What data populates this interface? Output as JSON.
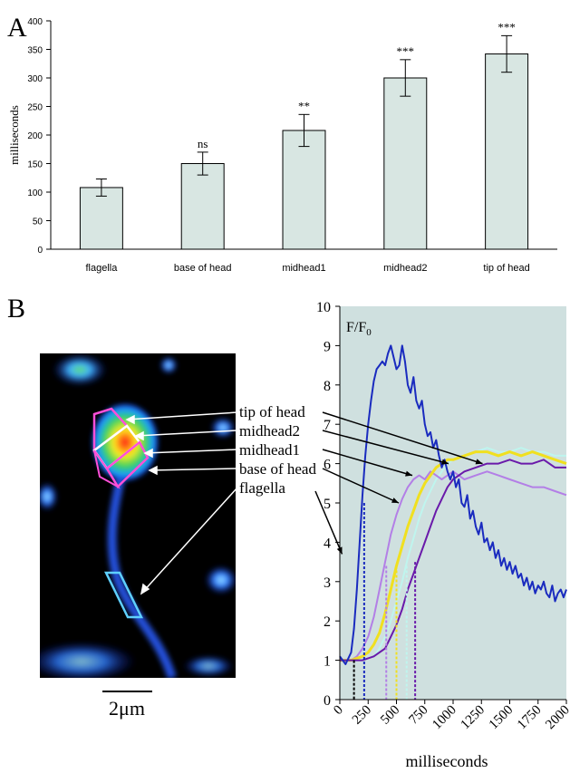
{
  "panel_a_label": "A",
  "panel_b_label": "B",
  "scale_bar_label": "2μm",
  "colors": {
    "bar_fill": "#d8e6e2",
    "plot_bg": "#cfe0df",
    "flagella": "#1a2bbf",
    "base_of_head": "#b37fe6",
    "midhead1": "#f0e020",
    "midhead2": "#bff5ee",
    "tip_of_head": "#6a1aaa"
  },
  "micrograph_labels": [
    "tip of head",
    "midhead2",
    "midhead1",
    "base of head",
    "flagella"
  ],
  "chart_data": [
    {
      "type": "bar",
      "categories": [
        "flagella",
        "base of head",
        "midhead1",
        "midhead2",
        "tip of head"
      ],
      "values": [
        108,
        150,
        208,
        300,
        342
      ],
      "errors": [
        15,
        20,
        28,
        32,
        32
      ],
      "significance": [
        "",
        "ns",
        "**",
        "***",
        "***"
      ],
      "ylabel": "milliseconds",
      "ylim": [
        0,
        400
      ],
      "yticks": [
        0,
        50,
        100,
        150,
        200,
        250,
        300,
        350,
        400
      ],
      "grid": false
    },
    {
      "type": "line",
      "ylabel_main": "F/F",
      "ylabel_sub": "0",
      "xlabel": "milliseconds",
      "xlim": [
        0,
        2000
      ],
      "ylim": [
        0,
        10
      ],
      "xticks": [
        0,
        250,
        500,
        750,
        1000,
        1250,
        1500,
        1750,
        2000
      ],
      "yticks": [
        0,
        1,
        2,
        3,
        4,
        5,
        6,
        7,
        8,
        9,
        10
      ],
      "series": [
        {
          "key": "flagella",
          "x": [
            0,
            50,
            100,
            125,
            150,
            175,
            200,
            225,
            250,
            275,
            300,
            325,
            350,
            375,
            400,
            425,
            450,
            475,
            500,
            525,
            550,
            575,
            600,
            625,
            650,
            675,
            700,
            725,
            750,
            775,
            800,
            825,
            850,
            875,
            900,
            925,
            950,
            975,
            1000,
            1025,
            1050,
            1075,
            1100,
            1125,
            1150,
            1175,
            1200,
            1225,
            1250,
            1275,
            1300,
            1325,
            1350,
            1375,
            1400,
            1425,
            1450,
            1475,
            1500,
            1525,
            1550,
            1575,
            1600,
            1625,
            1650,
            1675,
            1700,
            1725,
            1750,
            1775,
            1800,
            1825,
            1850,
            1875,
            1900,
            1925,
            1950,
            1975,
            2000
          ],
          "y": [
            1.1,
            0.9,
            1.2,
            1.8,
            2.8,
            4.0,
            5.2,
            6.2,
            7.0,
            7.6,
            8.1,
            8.4,
            8.5,
            8.6,
            8.5,
            8.8,
            9.0,
            8.7,
            8.4,
            8.5,
            9.0,
            8.6,
            8.0,
            7.8,
            8.2,
            7.6,
            7.4,
            7.6,
            7.0,
            6.7,
            6.8,
            6.4,
            6.6,
            6.2,
            5.9,
            6.1,
            5.8,
            5.6,
            5.8,
            5.4,
            5.6,
            5.0,
            4.9,
            5.2,
            4.6,
            4.8,
            4.4,
            4.2,
            4.5,
            4.0,
            4.1,
            3.8,
            4.0,
            3.6,
            3.8,
            3.4,
            3.6,
            3.3,
            3.5,
            3.2,
            3.4,
            3.1,
            3.2,
            2.9,
            3.1,
            2.8,
            3.0,
            2.7,
            2.9,
            2.8,
            3.0,
            2.7,
            2.6,
            2.9,
            2.5,
            2.7,
            2.8,
            2.6,
            2.8
          ]
        },
        {
          "key": "base_of_head",
          "x": [
            0,
            100,
            150,
            200,
            250,
            300,
            350,
            400,
            450,
            500,
            550,
            600,
            650,
            700,
            750,
            800,
            850,
            900,
            950,
            1000,
            1100,
            1200,
            1300,
            1400,
            1500,
            1600,
            1700,
            1800,
            1900,
            2000
          ],
          "y": [
            1.0,
            1.0,
            1.1,
            1.3,
            1.6,
            2.1,
            2.8,
            3.5,
            4.2,
            4.7,
            5.1,
            5.4,
            5.6,
            5.7,
            5.6,
            5.8,
            5.7,
            5.6,
            5.7,
            5.8,
            5.6,
            5.7,
            5.8,
            5.7,
            5.6,
            5.5,
            5.4,
            5.4,
            5.3,
            5.2
          ]
        },
        {
          "key": "midhead1",
          "x": [
            0,
            100,
            200,
            250,
            300,
            350,
            400,
            450,
            500,
            550,
            600,
            650,
            700,
            750,
            800,
            850,
            900,
            950,
            1000,
            1100,
            1200,
            1300,
            1400,
            1500,
            1600,
            1700,
            1800,
            1900,
            2000
          ],
          "y": [
            1.0,
            1.0,
            1.1,
            1.2,
            1.4,
            1.7,
            2.2,
            2.8,
            3.4,
            3.9,
            4.4,
            4.8,
            5.2,
            5.5,
            5.7,
            5.9,
            6.0,
            6.1,
            6.1,
            6.2,
            6.3,
            6.3,
            6.2,
            6.3,
            6.2,
            6.3,
            6.2,
            6.1,
            6.0
          ]
        },
        {
          "key": "midhead2",
          "x": [
            0,
            100,
            200,
            300,
            350,
            400,
            450,
            500,
            550,
            600,
            650,
            700,
            750,
            800,
            850,
            900,
            950,
            1000,
            1100,
            1200,
            1300,
            1400,
            1500,
            1600,
            1700,
            1800,
            1900,
            2000
          ],
          "y": [
            1.0,
            1.0,
            1.0,
            1.1,
            1.3,
            1.6,
            2.0,
            2.5,
            3.0,
            3.6,
            4.1,
            4.6,
            5.0,
            5.3,
            5.6,
            5.8,
            6.0,
            6.1,
            6.2,
            6.3,
            6.4,
            6.3,
            6.3,
            6.4,
            6.3,
            6.3,
            6.2,
            6.2
          ]
        },
        {
          "key": "tip_of_head",
          "x": [
            0,
            100,
            200,
            300,
            400,
            450,
            500,
            550,
            600,
            650,
            700,
            750,
            800,
            850,
            900,
            950,
            1000,
            1100,
            1200,
            1300,
            1400,
            1500,
            1600,
            1700,
            1800,
            1900,
            2000
          ],
          "y": [
            1.0,
            1.0,
            1.0,
            1.1,
            1.3,
            1.6,
            1.9,
            2.3,
            2.8,
            3.2,
            3.6,
            4.0,
            4.4,
            4.8,
            5.1,
            5.4,
            5.6,
            5.8,
            5.9,
            6.0,
            6.0,
            6.1,
            6.0,
            6.0,
            6.1,
            5.9,
            5.9
          ]
        }
      ],
      "half_max_markers": [
        {
          "key": "flagella",
          "x": 125,
          "y": 1.0
        },
        {
          "key": "flagella",
          "x": 215,
          "y": 5.0
        },
        {
          "key": "base_of_head",
          "x": 410,
          "y": 3.4
        },
        {
          "key": "midhead1",
          "x": 500,
          "y": 3.4
        },
        {
          "key": "midhead2",
          "x": 590,
          "y": 3.4
        },
        {
          "key": "tip_of_head",
          "x": 665,
          "y": 3.5
        }
      ],
      "callouts": [
        {
          "label": "tip of head",
          "key": "tip_of_head",
          "x": 1260,
          "y": 6.0
        },
        {
          "label": "midhead2",
          "key": "midhead2",
          "x": 960,
          "y": 6.0
        },
        {
          "label": "midhead1",
          "key": "midhead1",
          "x": 640,
          "y": 5.7
        },
        {
          "label": "base of head",
          "key": "base_of_head",
          "x": 520,
          "y": 5.0
        },
        {
          "label": "flagella",
          "key": "flagella",
          "x": 20,
          "y": 3.7
        }
      ],
      "grid": false
    }
  ]
}
